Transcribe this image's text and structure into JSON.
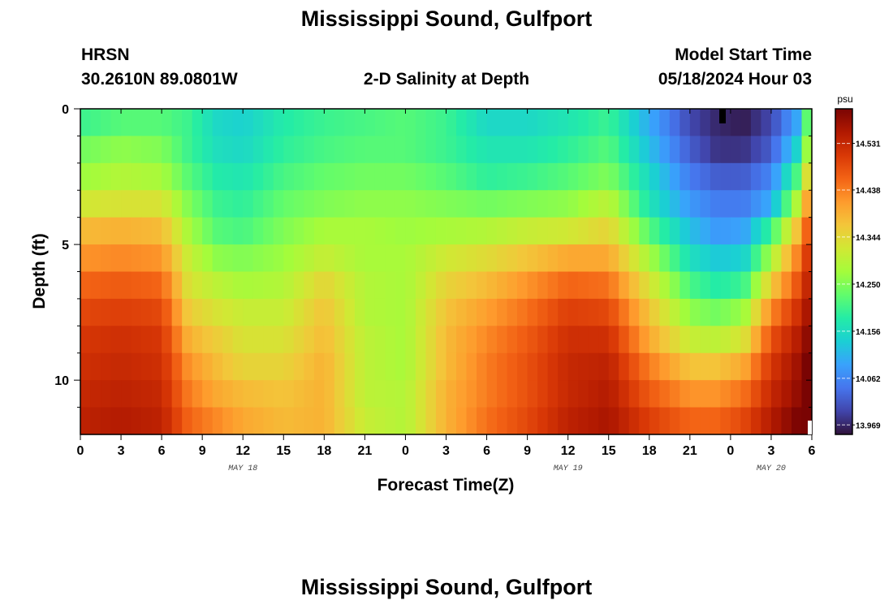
{
  "header": {
    "title": "Mississippi Sound, Gulfport",
    "station_id": "HRSN",
    "coordinates": "30.2610N  89.0801W",
    "subtitle": "2-D Salinity at Depth",
    "model_start_label": "Model Start Time",
    "model_start_value": "05/18/2024 Hour 03"
  },
  "footer": {
    "title": "Mississippi Sound, Gulfport"
  },
  "chart_data": {
    "type": "heatmap",
    "title": "2-D Salinity at Depth",
    "xlabel": "Forecast Time(Z)",
    "ylabel": "Depth (ft)",
    "x_tick_labels": [
      "0",
      "3",
      "6",
      "9",
      "12",
      "15",
      "18",
      "21",
      "0",
      "3",
      "6",
      "9",
      "12",
      "15",
      "18",
      "21",
      "0",
      "3",
      "6"
    ],
    "x_tick_hours": [
      0,
      3,
      6,
      9,
      12,
      15,
      18,
      21,
      24,
      27,
      30,
      33,
      36,
      39,
      42,
      45,
      48,
      51,
      54
    ],
    "date_labels": [
      {
        "label": "MAY 18",
        "hour": 12
      },
      {
        "label": "MAY 19",
        "hour": 36
      },
      {
        "label": "MAY 20",
        "hour": 51
      }
    ],
    "xlim": [
      0,
      54
    ],
    "y_tick_labels": [
      "0",
      "5",
      "10"
    ],
    "y_ticks": [
      0,
      5,
      10
    ],
    "ylim": [
      0,
      12
    ],
    "y_inverted": true,
    "colorbar": {
      "unit": "psu",
      "ticks": [
        13.969,
        14.062,
        14.156,
        14.25,
        14.344,
        14.438,
        14.531
      ],
      "tick_labels": [
        "13.969",
        "14.062",
        "14.156",
        "14.250",
        "14.344",
        "14.438",
        "14.531"
      ],
      "range": [
        13.95,
        14.6
      ],
      "colors": [
        "#30123b",
        "#4145ab",
        "#4675ed",
        "#39a2fc",
        "#1bcfd4",
        "#24eca6",
        "#61fc6c",
        "#a4fc3b",
        "#d1e834",
        "#f3c63a",
        "#fe9b2d",
        "#f36315",
        "#d93806",
        "#b11901",
        "#7a0403"
      ]
    },
    "depths_ft": [
      0.5,
      1.5,
      2.5,
      3.5,
      4.5,
      5.5,
      6.5,
      7.5,
      8.5,
      9.5,
      10.5,
      11.5
    ],
    "key_hours": [
      0,
      3,
      6,
      8,
      10,
      12,
      15,
      18,
      21,
      24,
      27,
      30,
      33,
      36,
      39,
      42,
      45,
      47,
      49,
      51,
      53,
      54
    ],
    "salinity_psu": [
      [
        14.2,
        14.22,
        14.22,
        14.2,
        14.15,
        14.14,
        14.18,
        14.2,
        14.21,
        14.22,
        14.2,
        14.15,
        14.15,
        14.17,
        14.2,
        14.1,
        14.0,
        13.97,
        13.96,
        14.0,
        14.1,
        14.3
      ],
      [
        14.24,
        14.26,
        14.25,
        14.2,
        14.16,
        14.15,
        14.19,
        14.21,
        14.22,
        14.22,
        14.2,
        14.17,
        14.17,
        14.19,
        14.22,
        14.12,
        14.02,
        13.98,
        13.98,
        14.02,
        14.15,
        14.34
      ],
      [
        14.27,
        14.29,
        14.28,
        14.22,
        14.18,
        14.17,
        14.21,
        14.23,
        14.24,
        14.24,
        14.22,
        14.19,
        14.2,
        14.22,
        14.25,
        14.15,
        14.05,
        14.02,
        14.02,
        14.06,
        14.22,
        14.4
      ],
      [
        14.32,
        14.33,
        14.33,
        14.25,
        14.2,
        14.19,
        14.23,
        14.25,
        14.26,
        14.26,
        14.25,
        14.24,
        14.25,
        14.26,
        14.3,
        14.17,
        14.08,
        14.05,
        14.05,
        14.1,
        14.3,
        14.46
      ],
      [
        14.38,
        14.39,
        14.38,
        14.28,
        14.22,
        14.21,
        14.25,
        14.28,
        14.28,
        14.27,
        14.28,
        14.29,
        14.31,
        14.32,
        14.35,
        14.22,
        14.12,
        14.08,
        14.09,
        14.2,
        14.38,
        14.51
      ],
      [
        14.42,
        14.43,
        14.42,
        14.31,
        14.26,
        14.25,
        14.27,
        14.31,
        14.28,
        14.28,
        14.32,
        14.34,
        14.37,
        14.4,
        14.4,
        14.28,
        14.16,
        14.13,
        14.14,
        14.28,
        14.44,
        14.54
      ],
      [
        14.46,
        14.47,
        14.46,
        14.33,
        14.3,
        14.28,
        14.29,
        14.35,
        14.29,
        14.28,
        14.35,
        14.38,
        14.42,
        14.46,
        14.45,
        14.33,
        14.21,
        14.18,
        14.2,
        14.36,
        14.48,
        14.56
      ],
      [
        14.49,
        14.5,
        14.49,
        14.36,
        14.33,
        14.31,
        14.31,
        14.37,
        14.29,
        14.28,
        14.37,
        14.41,
        14.45,
        14.5,
        14.49,
        14.37,
        14.26,
        14.24,
        14.27,
        14.43,
        14.52,
        14.58
      ],
      [
        14.51,
        14.52,
        14.51,
        14.39,
        14.36,
        14.33,
        14.33,
        14.38,
        14.3,
        14.28,
        14.38,
        14.43,
        14.47,
        14.52,
        14.52,
        14.4,
        14.31,
        14.3,
        14.33,
        14.48,
        14.55,
        14.6
      ],
      [
        14.52,
        14.53,
        14.52,
        14.42,
        14.38,
        14.35,
        14.35,
        14.39,
        14.3,
        14.28,
        14.38,
        14.44,
        14.48,
        14.53,
        14.54,
        14.44,
        14.37,
        14.37,
        14.4,
        14.51,
        14.57,
        14.62
      ],
      [
        14.53,
        14.54,
        14.53,
        14.44,
        14.4,
        14.38,
        14.37,
        14.39,
        14.3,
        14.29,
        14.39,
        14.44,
        14.48,
        14.53,
        14.55,
        14.47,
        14.42,
        14.42,
        14.45,
        14.53,
        14.58,
        14.64
      ],
      [
        14.54,
        14.55,
        14.54,
        14.46,
        14.43,
        14.4,
        14.38,
        14.39,
        14.31,
        14.29,
        14.39,
        14.45,
        14.49,
        14.54,
        14.56,
        14.5,
        14.46,
        14.46,
        14.49,
        14.55,
        14.6,
        14.66
      ]
    ]
  }
}
